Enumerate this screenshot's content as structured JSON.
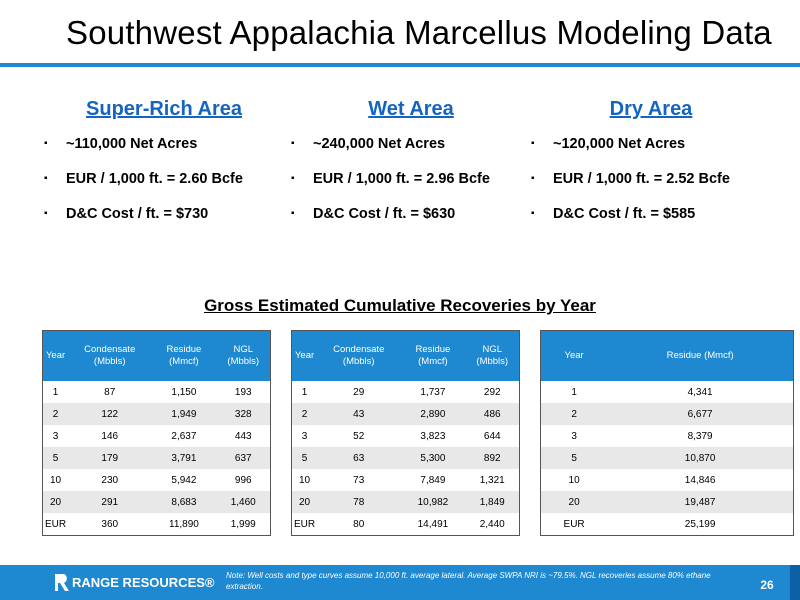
{
  "title": "Southwest Appalachia Marcellus Modeling Data",
  "areas": [
    {
      "name": "Super-Rich Area",
      "bullets": [
        "~110,000 Net Acres",
        "EUR / 1,000 ft. = 2.60 Bcfe",
        "D&C Cost / ft. = $730"
      ]
    },
    {
      "name": "Wet Area",
      "bullets": [
        "~240,000 Net Acres",
        "EUR / 1,000 ft. = 2.96 Bcfe",
        "D&C Cost / ft. = $630"
      ]
    },
    {
      "name": "Dry Area",
      "bullets": [
        "~120,000 Net Acres",
        "EUR / 1,000 ft. = 2.52 Bcfe",
        "D&C Cost / ft. = $585"
      ]
    }
  ],
  "bullet_marker": "▪",
  "section_title": "Gross Estimated Cumulative Recoveries by Year",
  "tables": [
    {
      "headers": [
        "Year",
        "Condensate (Mbbls)",
        "Residue (Mmcf)",
        "NGL (Mbbls)"
      ],
      "rows": [
        [
          "1",
          "87",
          "1,150",
          "193"
        ],
        [
          "2",
          "122",
          "1,949",
          "328"
        ],
        [
          "3",
          "146",
          "2,637",
          "443"
        ],
        [
          "5",
          "179",
          "3,791",
          "637"
        ],
        [
          "10",
          "230",
          "5,942",
          "996"
        ],
        [
          "20",
          "291",
          "8,683",
          "1,460"
        ],
        [
          "EUR",
          "360",
          "11,890",
          "1,999"
        ]
      ]
    },
    {
      "headers": [
        "Year",
        "Condensate (Mbbls)",
        "Residue (Mmcf)",
        "NGL (Mbbls)"
      ],
      "rows": [
        [
          "1",
          "29",
          "1,737",
          "292"
        ],
        [
          "2",
          "43",
          "2,890",
          "486"
        ],
        [
          "3",
          "52",
          "3,823",
          "644"
        ],
        [
          "5",
          "63",
          "5,300",
          "892"
        ],
        [
          "10",
          "73",
          "7,849",
          "1,321"
        ],
        [
          "20",
          "78",
          "10,982",
          "1,849"
        ],
        [
          "EUR",
          "80",
          "14,491",
          "2,440"
        ]
      ]
    },
    {
      "headers": [
        "Year",
        "Residue (Mmcf)"
      ],
      "rows": [
        [
          "1",
          "4,341"
        ],
        [
          "2",
          "6,677"
        ],
        [
          "3",
          "8,379"
        ],
        [
          "5",
          "10,870"
        ],
        [
          "10",
          "14,846"
        ],
        [
          "20",
          "19,487"
        ],
        [
          "EUR",
          "25,199"
        ]
      ]
    }
  ],
  "footer": {
    "logo_text": "RANGE RESOURCES®",
    "note": "Note: Well costs and type curves assume 10,000 ft. average lateral. Average SWPA NRI is ~79.5%. NGL recoveries assume 80% ethane extraction.",
    "page_number": "26"
  },
  "colors": {
    "accent": "#1e88d0",
    "heading_blue": "#1565c0",
    "row_alt": "#e8e8e8"
  }
}
